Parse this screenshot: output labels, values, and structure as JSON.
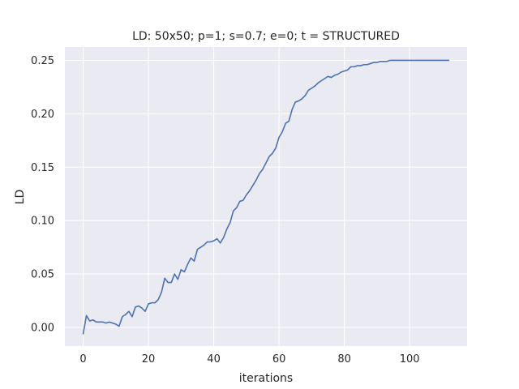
{
  "chart_data": {
    "type": "line",
    "title": "LD: 50x50; p=1; s=0.7; e=0; t = STRUCTURED",
    "xlabel": "iterations",
    "ylabel": "LD",
    "xlim": [
      -5.6,
      117.6
    ],
    "ylim": [
      -0.0175,
      0.2625
    ],
    "xticks": [
      0,
      20,
      40,
      60,
      80,
      100
    ],
    "xtick_labels": [
      "0",
      "20",
      "40",
      "60",
      "80",
      "100"
    ],
    "yticks": [
      0.0,
      0.05,
      0.1,
      0.15,
      0.2,
      0.25
    ],
    "ytick_labels": [
      "0.00",
      "0.05",
      "0.10",
      "0.15",
      "0.20",
      "0.25"
    ],
    "grid": true,
    "background": "#EAEAF2",
    "grid_color": "#FFFFFF",
    "series": [
      {
        "color": "#4C72B0",
        "x": [
          0,
          1,
          2,
          3,
          4,
          5,
          6,
          7,
          8,
          9,
          10,
          11,
          12,
          13,
          14,
          15,
          16,
          17,
          18,
          19,
          20,
          21,
          22,
          23,
          24,
          25,
          26,
          27,
          28,
          29,
          30,
          31,
          32,
          33,
          34,
          35,
          36,
          37,
          38,
          39,
          40,
          41,
          42,
          43,
          44,
          45,
          46,
          47,
          48,
          49,
          50,
          51,
          52,
          53,
          54,
          55,
          56,
          57,
          58,
          59,
          60,
          61,
          62,
          63,
          64,
          65,
          66,
          67,
          68,
          69,
          70,
          71,
          72,
          73,
          74,
          75,
          76,
          77,
          78,
          79,
          80,
          81,
          82,
          83,
          84,
          85,
          86,
          87,
          88,
          89,
          90,
          91,
          92,
          93,
          94,
          95,
          96,
          97,
          98,
          99,
          100,
          101,
          102,
          103,
          104,
          105,
          106,
          107,
          108,
          109,
          110,
          111,
          112
        ],
        "y": [
          -0.006,
          0.011,
          0.006,
          0.007,
          0.005,
          0.005,
          0.005,
          0.004,
          0.005,
          0.004,
          0.003,
          0.001,
          0.01,
          0.012,
          0.015,
          0.01,
          0.019,
          0.02,
          0.018,
          0.015,
          0.022,
          0.023,
          0.023,
          0.026,
          0.033,
          0.046,
          0.042,
          0.042,
          0.05,
          0.045,
          0.054,
          0.052,
          0.059,
          0.065,
          0.062,
          0.073,
          0.075,
          0.077,
          0.08,
          0.08,
          0.081,
          0.083,
          0.079,
          0.084,
          0.092,
          0.098,
          0.109,
          0.112,
          0.118,
          0.119,
          0.124,
          0.128,
          0.133,
          0.138,
          0.144,
          0.148,
          0.154,
          0.16,
          0.163,
          0.168,
          0.178,
          0.183,
          0.191,
          0.193,
          0.204,
          0.211,
          0.212,
          0.214,
          0.217,
          0.222,
          0.224,
          0.226,
          0.229,
          0.231,
          0.233,
          0.235,
          0.234,
          0.236,
          0.237,
          0.239,
          0.24,
          0.241,
          0.244,
          0.244,
          0.245,
          0.245,
          0.246,
          0.246,
          0.247,
          0.248,
          0.248,
          0.249,
          0.249,
          0.249,
          0.25,
          0.25,
          0.25,
          0.25,
          0.25,
          0.25,
          0.25,
          0.25,
          0.25,
          0.25,
          0.25,
          0.25,
          0.25,
          0.25,
          0.25,
          0.25,
          0.25,
          0.25,
          0.25
        ]
      }
    ]
  }
}
